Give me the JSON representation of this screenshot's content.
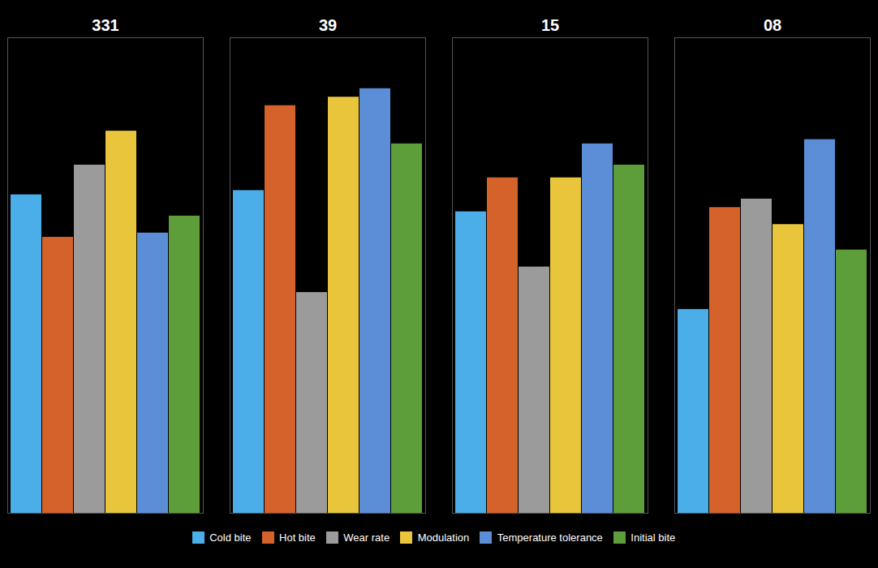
{
  "chart_data": {
    "type": "bar",
    "categories": [
      "331",
      "39",
      "15",
      "08"
    ],
    "series": [
      {
        "name": "Cold bite",
        "color": "#4BAEE8",
        "values": [
          75,
          76,
          71,
          48
        ]
      },
      {
        "name": "Hot bite",
        "color": "#D4622A",
        "values": [
          65,
          96,
          79,
          72
        ]
      },
      {
        "name": "Wear rate",
        "color": "#9B9B9B",
        "values": [
          82,
          52,
          58,
          74
        ]
      },
      {
        "name": "Modulation",
        "color": "#E8C53A",
        "values": [
          90,
          98,
          79,
          68
        ]
      },
      {
        "name": "Temperature tolerance",
        "color": "#5B8ED6",
        "values": [
          66,
          100,
          87,
          88
        ]
      },
      {
        "name": "Initial bite",
        "color": "#5D9E3A",
        "values": [
          70,
          87,
          82,
          62
        ]
      }
    ],
    "ylim": [
      0,
      112
    ],
    "tick_labels": false,
    "grid": false,
    "legend": "bottom"
  }
}
